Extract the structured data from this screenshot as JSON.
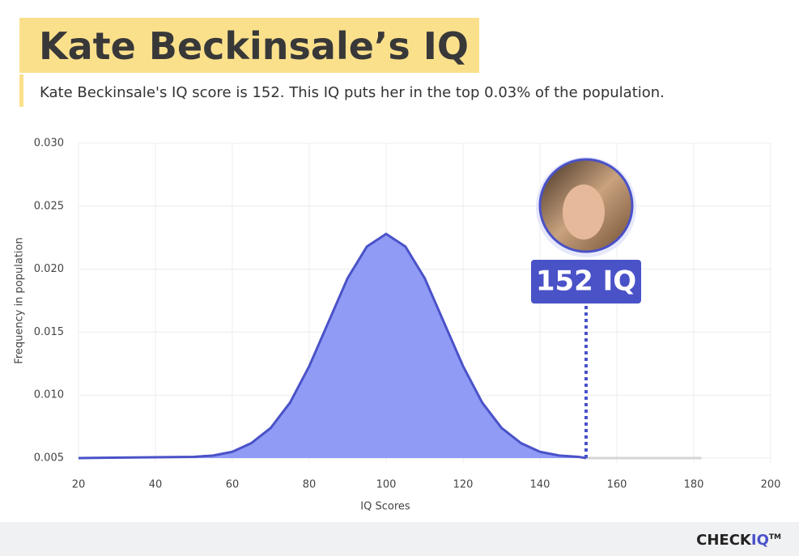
{
  "header": {
    "title": "Kate Beckinsale’s IQ",
    "subtitle": "Kate Beckinsale's IQ score is 152. This IQ puts her in the top 0.03% of the population."
  },
  "chart_data": {
    "type": "area",
    "xlabel": "IQ Scores",
    "ylabel": "Frequency in population",
    "xlim": [
      20,
      200
    ],
    "xticks": [
      20,
      40,
      60,
      80,
      100,
      120,
      140,
      160,
      180,
      200
    ],
    "ylim": [
      0.005,
      0.03
    ],
    "yticks": [
      0.005,
      {
        "value": 0.01,
        "label": "0.010"
      },
      0.015,
      {
        "value": 0.02,
        "label": "0.020"
      },
      0.025,
      {
        "value": 0.03,
        "label": "0.030"
      }
    ],
    "grid": true,
    "curve": {
      "color": "#4a52c8",
      "fill": "#8f9bf5",
      "x": [
        20,
        50,
        55,
        60,
        65,
        70,
        75,
        80,
        85,
        90,
        95,
        100,
        105,
        110,
        115,
        120,
        125,
        130,
        135,
        140,
        145,
        150,
        152
      ],
      "values": [
        0.005,
        0.0051,
        0.0052,
        0.0055,
        0.0062,
        0.0074,
        0.0094,
        0.0123,
        0.0158,
        0.0193,
        0.0218,
        0.0228,
        0.0218,
        0.0193,
        0.0158,
        0.0123,
        0.0094,
        0.0074,
        0.0062,
        0.0055,
        0.0052,
        0.0051,
        0.005
      ]
    },
    "tail": {
      "color": "#d4d4d4",
      "x": [
        152,
        182
      ],
      "values": [
        0.005,
        0.005
      ]
    },
    "marker": {
      "x": 152,
      "label": "152 IQ",
      "color": "#4a52c8"
    }
  },
  "footer": {
    "brand_main": "CHECK",
    "brand_accent": "IQ",
    "trademark": "TM"
  }
}
